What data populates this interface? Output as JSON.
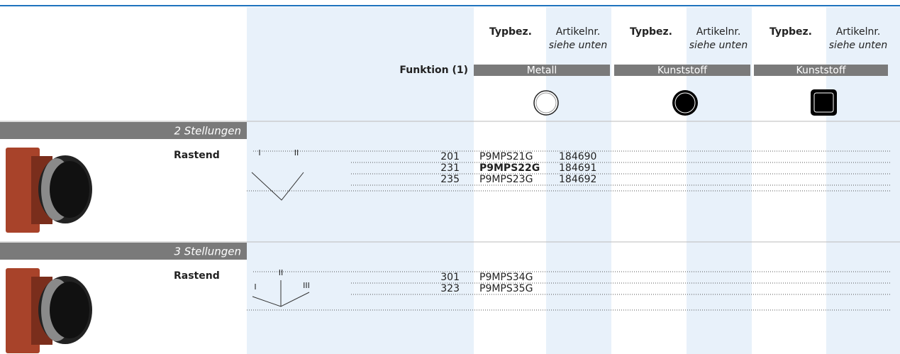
{
  "header": {
    "function_label": "Funktion (1)",
    "columns": [
      {
        "type_label": "Typbez.",
        "article_label": "Artikelnr.",
        "article_note": "siehe unten",
        "material": "Metall"
      },
      {
        "type_label": "Typbez.",
        "article_label": "Artikelnr.",
        "article_note": "siehe unten",
        "material": "Kunststoff"
      },
      {
        "type_label": "Typbez.",
        "article_label": "Artikelnr.",
        "article_note": "siehe unten",
        "material": "Kunststoff"
      }
    ]
  },
  "sections": [
    {
      "title": "2 Stellungen",
      "mode": "Rastend",
      "positions": [
        "I",
        "II"
      ],
      "rows": [
        {
          "code": "201",
          "type": "P9MPS21G",
          "article": "184690"
        },
        {
          "code": "231",
          "type": "P9MPS22G",
          "article": "184691",
          "bold": true
        },
        {
          "code": "235",
          "type": "P9MPS23G",
          "article": "184692"
        }
      ]
    },
    {
      "title": "3 Stellungen",
      "mode": "Rastend",
      "positions": [
        "I",
        "II",
        "III"
      ],
      "rows": [
        {
          "code": "301",
          "type": "P9MPS34G"
        },
        {
          "code": "323",
          "type": "P9MPS35G"
        }
      ]
    }
  ]
}
